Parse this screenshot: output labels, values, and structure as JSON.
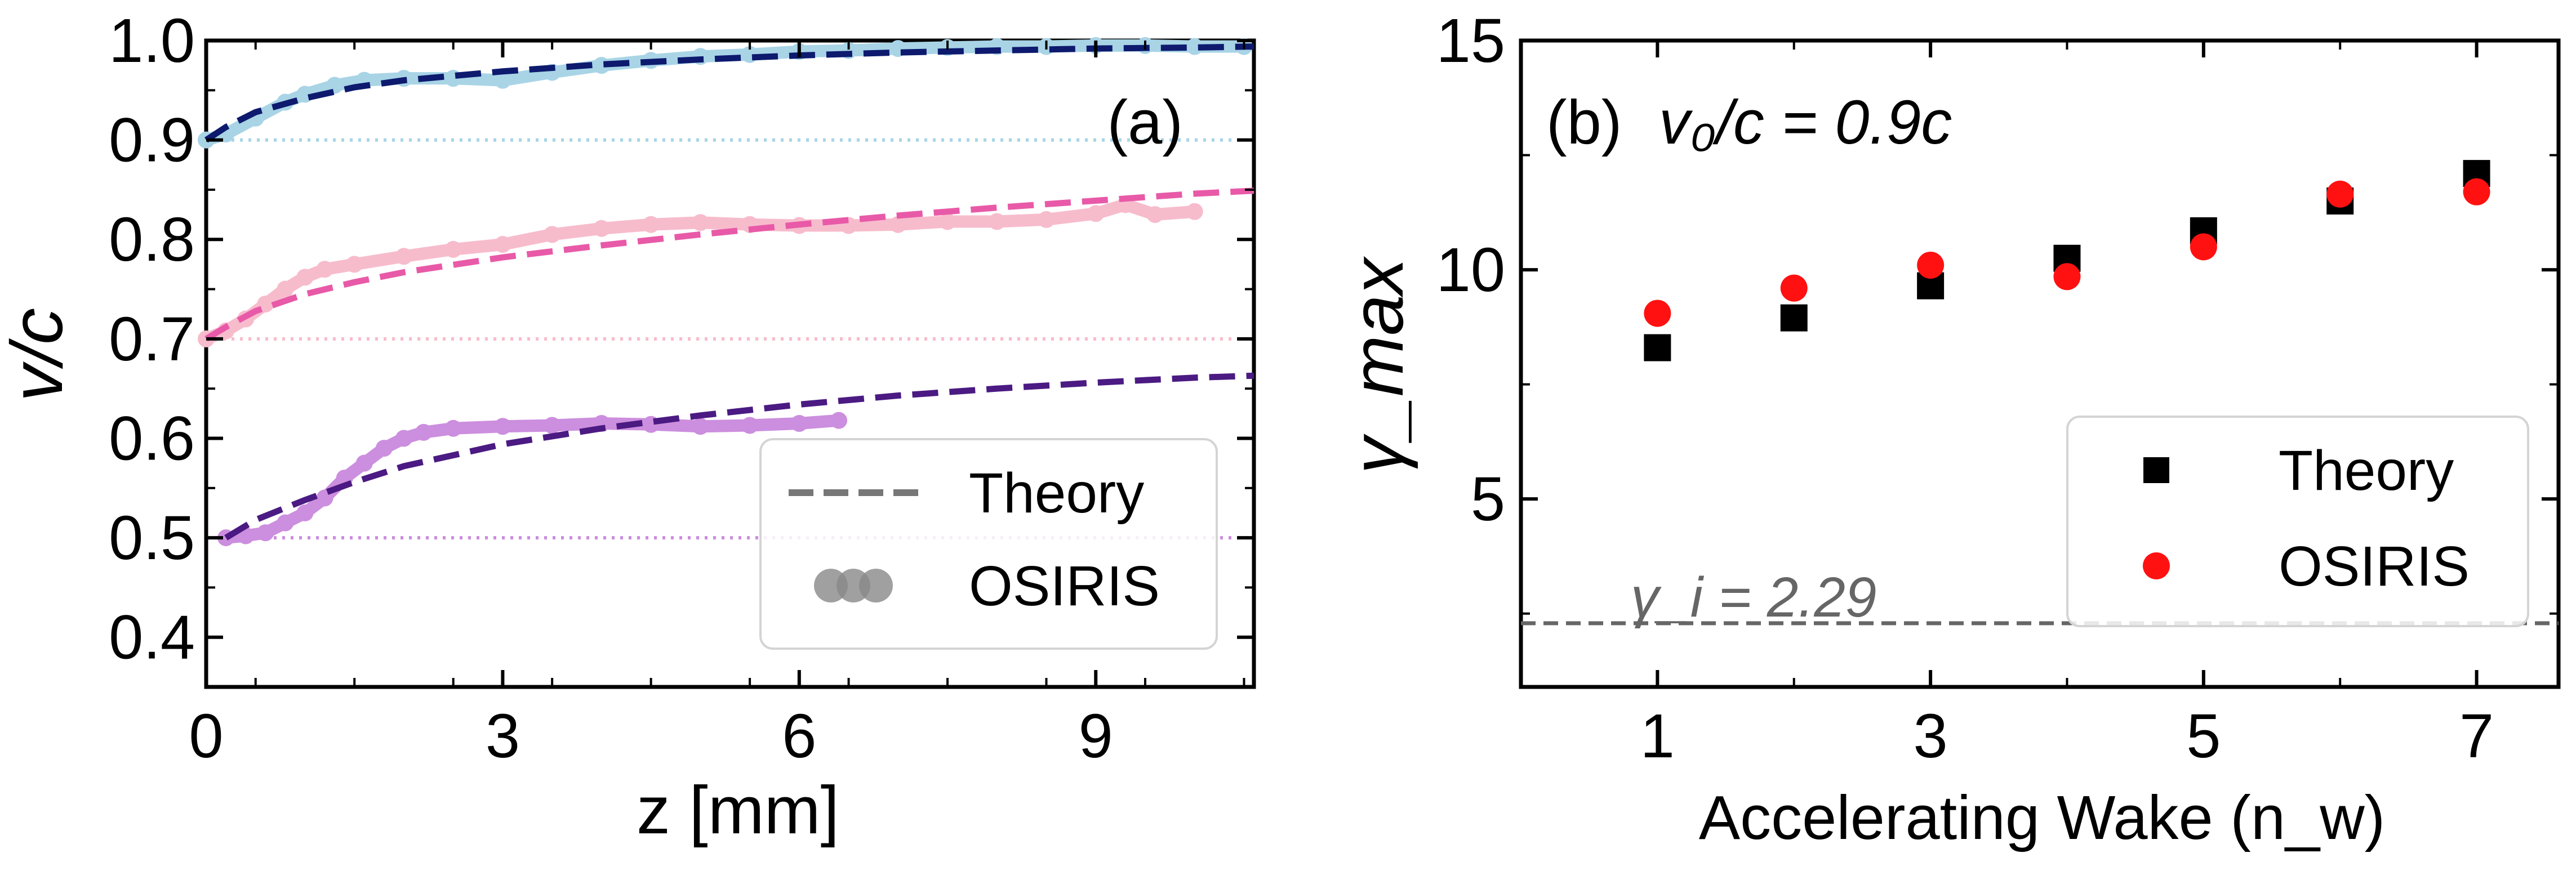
{
  "chart_data": [
    {
      "panel_label": "(a)",
      "type": "line",
      "xlabel": "z [mm]",
      "ylabel": "v/c",
      "xlim": [
        0,
        10.6
      ],
      "ylim": [
        0.35,
        1.0
      ],
      "xticks": [
        0,
        3,
        6,
        9
      ],
      "yticks": [
        0.4,
        0.5,
        0.6,
        0.7,
        0.8,
        0.9,
        1.0
      ],
      "xtick_labels": [
        "0",
        "3",
        "6",
        "9"
      ],
      "ytick_labels": [
        "0.4",
        "0.5",
        "0.6",
        "0.7",
        "0.8",
        "0.9",
        "1.0"
      ],
      "legend": {
        "position": "lower-right",
        "entries": [
          "Theory",
          "OSIRIS"
        ]
      },
      "theory": [
        {
          "v0": 0.9,
          "color": "#0d1a6e",
          "x": [
            0,
            0.2,
            0.5,
            1,
            1.5,
            2,
            3,
            4,
            5,
            6,
            7,
            8,
            9,
            10,
            10.6
          ],
          "y": [
            0.9,
            0.913,
            0.928,
            0.942,
            0.953,
            0.96,
            0.969,
            0.976,
            0.981,
            0.985,
            0.988,
            0.99,
            0.992,
            0.993,
            0.994
          ]
        },
        {
          "v0": 0.7,
          "color": "#e85aa8",
          "x": [
            0,
            0.2,
            0.5,
            1,
            1.5,
            2,
            3,
            4,
            5,
            6,
            7,
            8,
            9,
            10,
            10.6
          ],
          "y": [
            0.7,
            0.712,
            0.728,
            0.745,
            0.757,
            0.767,
            0.782,
            0.794,
            0.805,
            0.815,
            0.824,
            0.832,
            0.839,
            0.846,
            0.849
          ]
        },
        {
          "v0": 0.5,
          "color": "#4b1a82",
          "x": [
            0.2,
            0.5,
            1,
            1.5,
            2,
            3,
            4,
            5,
            6,
            7,
            8,
            9,
            10,
            10.6
          ],
          "y": [
            0.5,
            0.518,
            0.538,
            0.556,
            0.572,
            0.594,
            0.61,
            0.623,
            0.634,
            0.643,
            0.65,
            0.656,
            0.661,
            0.663
          ]
        }
      ],
      "osiris": [
        {
          "v0": 0.9,
          "color": "#a8d4e6",
          "x": [
            0,
            0.2,
            0.5,
            0.8,
            1,
            1.3,
            1.6,
            2,
            2.5,
            3,
            3.5,
            4,
            4.5,
            5,
            5.5,
            6,
            6.5,
            7,
            7.5,
            8,
            8.5,
            9,
            9.5,
            10,
            10.5
          ],
          "y": [
            0.9,
            0.906,
            0.922,
            0.938,
            0.946,
            0.955,
            0.96,
            0.962,
            0.962,
            0.96,
            0.968,
            0.975,
            0.98,
            0.984,
            0.986,
            0.989,
            0.99,
            0.992,
            0.993,
            0.994,
            0.994,
            0.995,
            0.995,
            0.994,
            0.994
          ]
        },
        {
          "v0": 0.7,
          "color": "#f7bccc",
          "x": [
            0,
            0.2,
            0.4,
            0.6,
            0.8,
            1,
            1.2,
            1.5,
            2,
            2.5,
            3,
            3.5,
            4,
            4.5,
            5,
            5.5,
            6,
            6.5,
            7,
            7.5,
            8,
            8.5,
            9,
            9.3,
            9.6,
            10
          ],
          "y": [
            0.7,
            0.708,
            0.72,
            0.735,
            0.75,
            0.762,
            0.77,
            0.775,
            0.783,
            0.79,
            0.795,
            0.805,
            0.811,
            0.815,
            0.817,
            0.815,
            0.814,
            0.814,
            0.815,
            0.818,
            0.818,
            0.82,
            0.826,
            0.835,
            0.825,
            0.828
          ]
        },
        {
          "v0": 0.5,
          "color": "#cc8ede",
          "x": [
            0.2,
            0.4,
            0.6,
            0.8,
            1,
            1.2,
            1.4,
            1.6,
            1.8,
            2,
            2.2,
            2.5,
            3,
            3.5,
            4,
            4.5,
            5,
            5.5,
            6,
            6.4
          ],
          "y": [
            0.5,
            0.502,
            0.505,
            0.515,
            0.525,
            0.54,
            0.56,
            0.575,
            0.59,
            0.6,
            0.606,
            0.61,
            0.612,
            0.613,
            0.615,
            0.614,
            0.612,
            0.613,
            0.615,
            0.618
          ]
        }
      ],
      "initial_velocity_lines": [
        {
          "y": 0.9,
          "color": "#a8d4e6"
        },
        {
          "y": 0.7,
          "color": "#f7bccc"
        },
        {
          "y": 0.5,
          "color": "#cc8ede"
        }
      ]
    },
    {
      "panel_label": "(b)",
      "title_text": "v₀/c = 0.9c",
      "type": "scatter",
      "xlabel": "Accelerating Wake (n_w)",
      "ylabel": "γ_max",
      "xlim": [
        0,
        7.6
      ],
      "ylim": [
        0.9,
        15
      ],
      "xticks": [
        1,
        3,
        5,
        7
      ],
      "yticks": [
        5,
        10,
        15
      ],
      "xtick_labels": [
        "1",
        "3",
        "5",
        "7"
      ],
      "ytick_labels": [
        "5",
        "10",
        "15"
      ],
      "legend": {
        "position": "lower-right",
        "entries": [
          "Theory",
          "OSIRIS"
        ]
      },
      "series": [
        {
          "name": "Theory",
          "marker": "square",
          "color": "#000000",
          "x": [
            1,
            2,
            3,
            4,
            5,
            6,
            7
          ],
          "y": [
            8.3,
            8.95,
            9.65,
            10.25,
            10.85,
            11.5,
            12.1
          ]
        },
        {
          "name": "OSIRIS",
          "marker": "circle",
          "color": "#ff1111",
          "x": [
            1,
            2,
            3,
            4,
            5,
            6,
            7
          ],
          "y": [
            9.05,
            9.6,
            10.1,
            9.85,
            10.5,
            11.65,
            11.7
          ]
        }
      ],
      "reference_line": {
        "y": 2.29,
        "label": "γ_i = 2.29",
        "color": "#666666"
      }
    }
  ]
}
